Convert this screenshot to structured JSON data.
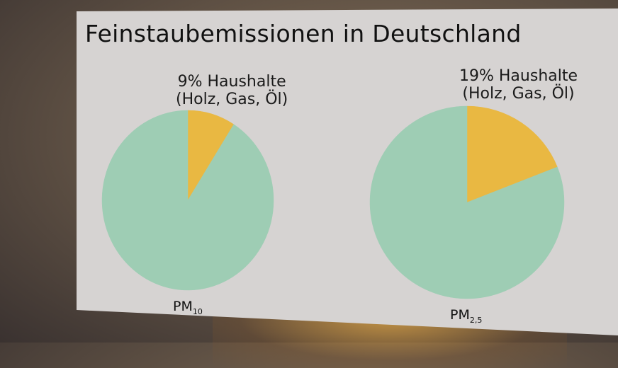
{
  "chart_data": {
    "title": "Feinstaubemissionen in Deutschland",
    "colors": {
      "highlight": "#e9b842",
      "rest": "#9ecdb4"
    },
    "charts": [
      {
        "type": "pie",
        "caption_main": "PM",
        "caption_sub": "10",
        "slices": [
          {
            "label_line1": "9% Haushalte",
            "label_line2": "(Holz, Gas, Öl)",
            "value": 9,
            "color": "#e9b842"
          },
          {
            "value": 91,
            "color": "#9ecdb4"
          }
        ]
      },
      {
        "type": "pie",
        "caption_main": "PM",
        "caption_sub": "2,5",
        "slices": [
          {
            "label_line1": "19% Haushalte",
            "label_line2": "(Holz, Gas, Öl)",
            "value": 19,
            "color": "#e9b842"
          },
          {
            "value": 81,
            "color": "#9ecdb4"
          }
        ]
      }
    ]
  }
}
